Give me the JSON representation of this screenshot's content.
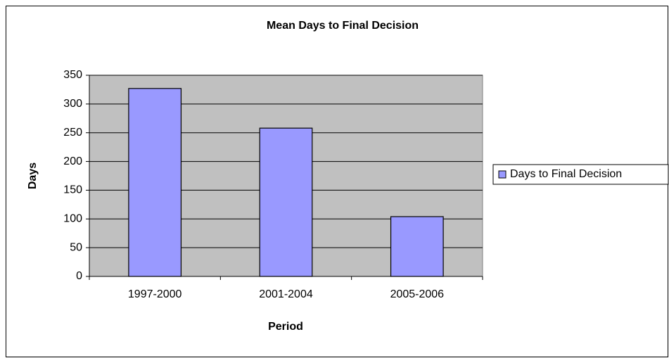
{
  "chart_data": {
    "type": "bar",
    "title": "Mean Days to Final Decision",
    "xlabel": "Period",
    "ylabel": "Days",
    "categories": [
      "1997-2000",
      "2001-2004",
      "2005-2006"
    ],
    "series": [
      {
        "name": "Days to Final Decision",
        "color": "#9999ff",
        "values": [
          327,
          258,
          104
        ]
      }
    ],
    "ylim": [
      0,
      350
    ],
    "yticks": [
      0,
      50,
      100,
      150,
      200,
      250,
      300,
      350
    ],
    "grid": true,
    "legend": "right"
  }
}
